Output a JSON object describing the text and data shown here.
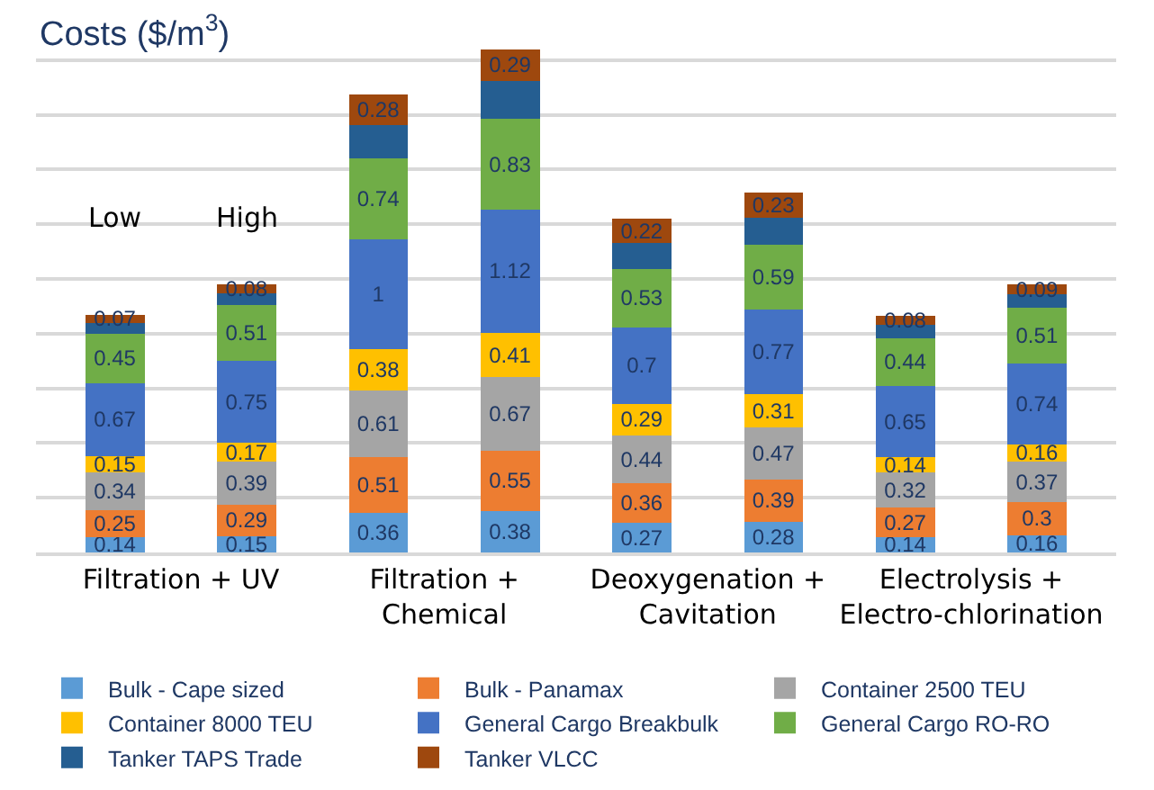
{
  "chart_data": {
    "type": "bar",
    "stacked": true,
    "ylabel": "Costs ($/m$^{3}$)",
    "categories": [
      "Filtration + UV",
      null,
      "Filtration + Chemical",
      null,
      "Deoxygenation + Cavitation",
      null,
      "Electrolysis + Electro-chlorination",
      null
    ],
    "annotations": [
      "Low",
      "High"
    ],
    "ylim": [
      0,
      5
    ],
    "yticks": [
      {
        "value": 0.5,
        "label": null
      },
      {
        "value": 1,
        "label": null
      },
      {
        "value": 1.5,
        "label": null
      },
      {
        "value": 2,
        "label": null
      },
      {
        "value": 2.5,
        "label": null
      },
      {
        "value": 3,
        "label": null
      },
      {
        "value": 3.5,
        "label": null
      },
      {
        "value": 4,
        "label": null
      },
      {
        "value": 4.5,
        "label": null
      }
    ],
    "tick_labels": "x",
    "grid": "y",
    "legend": "bottom",
    "series": [
      {
        "name": "Bulk - Cape sized",
        "color": "#5b9bd5",
        "values": [
          0.14,
          0.15,
          0.36,
          0.38,
          0.27,
          0.28,
          0.14,
          0.16
        ],
        "value_labels": [
          "0.14",
          "0.15",
          "0.36",
          "0.38",
          "0.27",
          "0.28",
          "0.14",
          "0.16"
        ]
      },
      {
        "name": "Bulk - Panamax",
        "color": "#ed7d31",
        "values": [
          0.25,
          0.29,
          0.51,
          0.55,
          0.36,
          0.39,
          0.27,
          0.3
        ],
        "value_labels": [
          "0.25",
          "0.29",
          "0.51",
          "0.55",
          "0.36",
          "0.39",
          "0.27",
          "0.3"
        ]
      },
      {
        "name": "Container 2500 TEU",
        "color": "#a5a5a5",
        "values": [
          0.34,
          0.39,
          0.61,
          0.67,
          0.44,
          0.47,
          0.32,
          0.37
        ],
        "value_labels": [
          "0.34",
          "0.39",
          "0.61",
          "0.67",
          "0.44",
          "0.47",
          "0.32",
          "0.37"
        ]
      },
      {
        "name": "Container 8000 TEU",
        "color": "#ffc000",
        "values": [
          0.15,
          0.17,
          0.38,
          0.41,
          0.29,
          0.31,
          0.14,
          0.16
        ],
        "value_labels": [
          "0.15",
          "0.17",
          "0.38",
          "0.41",
          "0.29",
          "0.31",
          "0.14",
          "0.16"
        ]
      },
      {
        "name": "General Cargo Breakbulk",
        "color": "#4472c4",
        "values": [
          0.67,
          0.75,
          1,
          1.12,
          0.7,
          0.77,
          0.65,
          0.74
        ],
        "value_labels": [
          "0.67",
          "0.75",
          "1",
          "1.12",
          "0.7",
          "0.77",
          "0.65",
          "0.74"
        ]
      },
      {
        "name": "General Cargo RO-RO",
        "color": "#70ad47",
        "values": [
          0.45,
          0.51,
          0.74,
          0.83,
          0.53,
          0.59,
          0.44,
          0.51
        ],
        "value_labels": [
          "0.45",
          "0.51",
          "0.74",
          "0.83",
          "0.53",
          "0.59",
          "0.44",
          "0.51"
        ]
      },
      {
        "name": "Tanker TAPS Trade",
        "color": "#255e91",
        "values": [
          0.1,
          0.11,
          0.31,
          0.35,
          0.24,
          0.25,
          0.12,
          0.12
        ],
        "value_labels": [
          null,
          null,
          null,
          null,
          null,
          null,
          null,
          null
        ]
      },
      {
        "name": "Tanker VLCC",
        "color": "#9e480e",
        "values": [
          0.07,
          0.08,
          0.28,
          0.29,
          0.22,
          0.23,
          0.08,
          0.09
        ],
        "value_labels": [
          "0.07",
          "0.08",
          "0.28",
          "0.29",
          "0.22",
          "0.23",
          "0.08",
          "0.09"
        ]
      }
    ]
  }
}
